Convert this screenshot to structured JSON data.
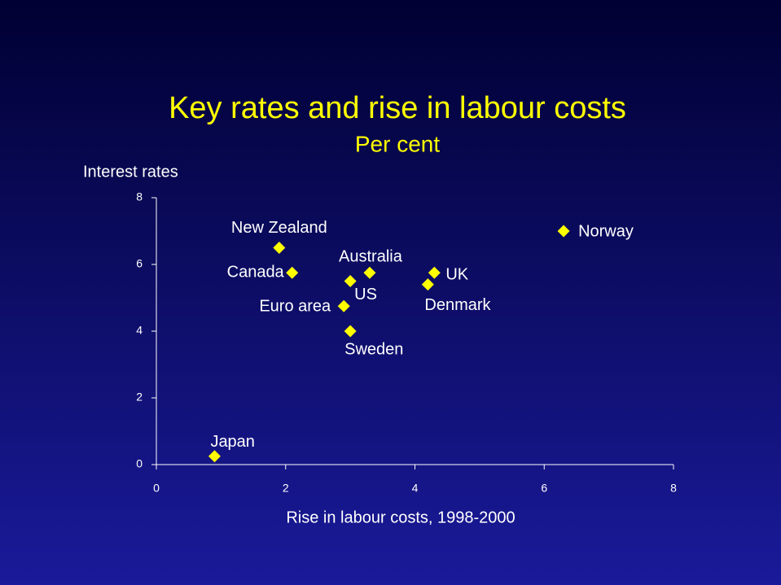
{
  "chart_data": {
    "type": "scatter",
    "title": "Key rates and rise in labour costs",
    "subtitle": "Per cent",
    "y_label": "Interest rates",
    "x_label": "Rise in labour costs, 1998-2000",
    "labels": [
      "Japan",
      "New Zealand",
      "Canada",
      "Euro area",
      "US",
      "Australia",
      "Sweden",
      "UK",
      "Denmark",
      "Norway"
    ],
    "x": [
      0.9,
      1.9,
      2.1,
      2.9,
      3.0,
      3.3,
      3.0,
      4.3,
      4.2,
      6.3
    ],
    "values": [
      0.25,
      6.5,
      5.75,
      4.75,
      5.5,
      5.75,
      4.0,
      5.75,
      5.4,
      7.0
    ],
    "color": "#ffff00",
    "xlim": [
      0,
      8
    ],
    "ylim": [
      0,
      8
    ],
    "xticks": [
      0,
      2,
      4,
      6,
      8
    ],
    "yticks": [
      0,
      2,
      4,
      6,
      8
    ]
  }
}
